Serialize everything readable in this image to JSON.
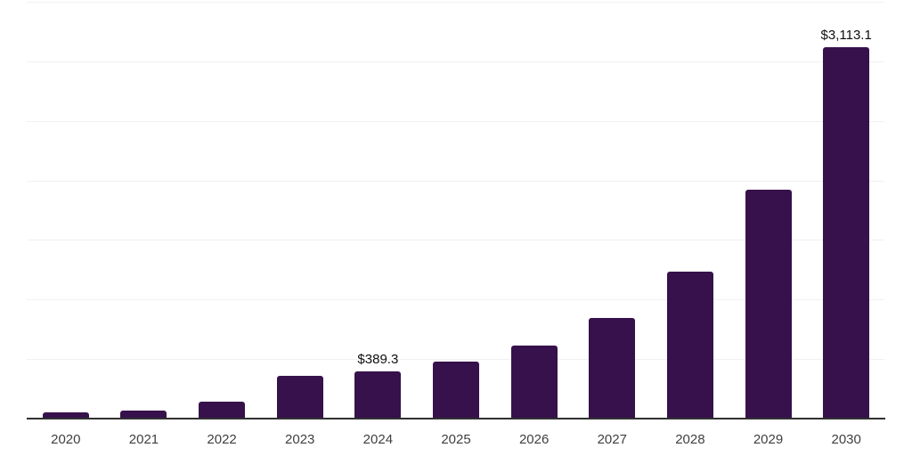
{
  "chart_data": {
    "type": "bar",
    "categories": [
      "2020",
      "2021",
      "2022",
      "2023",
      "2024",
      "2025",
      "2026",
      "2027",
      "2028",
      "2029",
      "2030"
    ],
    "values": [
      45,
      63,
      132,
      348,
      389.3,
      472,
      605,
      840,
      1229,
      1917,
      3113.1
    ],
    "value_labels": [
      "",
      "",
      "",
      "",
      "$389.3",
      "",
      "",
      "",
      "",
      "",
      "$3,113.1"
    ],
    "ylim": [
      0,
      3500
    ],
    "gridline_step": 500,
    "grid": true,
    "legend": false,
    "bar_color": "#36114b",
    "gridline_color": "#f1f1f1",
    "axis_line_color": "#303030",
    "tick_label_color": "#3f3f3f",
    "data_label_color": "#0f0f0f"
  }
}
